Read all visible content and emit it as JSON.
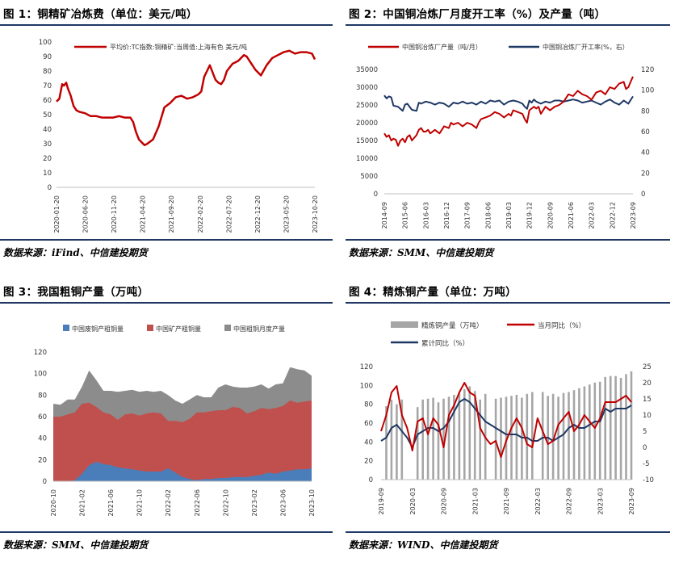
{
  "panels": [
    {
      "title": "图 1：铜精矿冶炼费（单位：美元/吨）",
      "source": "数据来源：iFind、中信建投期货"
    },
    {
      "title": "图 2：中国铜冶炼厂月度开工率（%）及产量（吨）",
      "source": "数据来源：SMM、中信建投期货"
    },
    {
      "title": "图 3：我国粗铜产量（万吨）",
      "source": "数据来源：SMM、中信建投期货"
    },
    {
      "title": "图 4：精炼铜产量（单位：万吨）",
      "source": "数据来源：WIND、中信建投期货"
    }
  ],
  "colors": {
    "red": "#c00000",
    "navy": "#1f3864",
    "blue": "#4a7ebb",
    "red3": "#c0504d",
    "gray": "#8c8c8c",
    "gray4": "#a6a6a6",
    "dark": "#1f3864",
    "rule": "#1f3864"
  },
  "chart_data": [
    {
      "type": "line",
      "legend": [
        "平均价:TC指数:铜精矿:当周值:上海有色 美元/吨"
      ],
      "ylim": [
        0,
        100
      ],
      "yticks": [
        "0",
        "10",
        "20",
        "30",
        "40",
        "50",
        "60",
        "70",
        "80",
        "90",
        "100"
      ],
      "xticks": [
        "2020-01-20",
        "2020-06-20",
        "2020-11-20",
        "2021-04-20",
        "2021-09-20",
        "2022-02-20",
        "2022-07-20",
        "2022-12-20",
        "2023-05-20",
        "2023-10-20"
      ],
      "xrange": [
        0,
        45.5
      ],
      "x": [
        0,
        0.5,
        1,
        1.3,
        1.7,
        2,
        2.5,
        3,
        3.5,
        4,
        5,
        6,
        7,
        8,
        9,
        10,
        11,
        12,
        13,
        13.5,
        14,
        14.5,
        15,
        15.5,
        16,
        17,
        18,
        19,
        20,
        21,
        22,
        23,
        24,
        25,
        25.5,
        26,
        26.5,
        27,
        28,
        28.5,
        29,
        29.5,
        30,
        31,
        32,
        33,
        33.5,
        34,
        35,
        36,
        37,
        38,
        39,
        40,
        41,
        42,
        43,
        44,
        45,
        45.5
      ],
      "y": [
        59,
        61,
        71,
        70,
        72,
        68,
        63,
        56,
        53,
        52,
        51,
        49,
        49,
        48,
        48,
        48,
        49,
        48,
        48,
        45,
        38,
        33,
        31,
        29,
        30,
        33,
        42,
        55,
        58,
        62,
        63,
        61,
        62,
        64,
        66,
        76,
        80,
        84,
        74,
        72,
        71,
        74,
        80,
        85,
        87,
        91,
        90,
        87,
        81,
        77,
        84,
        89,
        91,
        93,
        94,
        92,
        93,
        93,
        92,
        88
      ]
    },
    {
      "type": "line",
      "legend": [
        "中国铜冶炼厂产量（吨/月）",
        "中国铜冶炼厂开工率(%，右）"
      ],
      "ylim": [
        0,
        35000
      ],
      "yticks": [
        "0",
        "5000",
        "10000",
        "15000",
        "20000",
        "25000",
        "30000",
        "35000"
      ],
      "y2lim": [
        0,
        120
      ],
      "y2ticks": [
        "0",
        "20",
        "40",
        "60",
        "80",
        "100",
        "120"
      ],
      "xticks": [
        "2014-09",
        "2015-06",
        "2016-03",
        "2016-12",
        "2017-09",
        "2018-06",
        "2019-03",
        "2019-12",
        "2020-09",
        "2021-06",
        "2022-03",
        "2022-12",
        "2023-09"
      ],
      "xrange": [
        0,
        108
      ],
      "series": [
        {
          "name": "中国铜冶炼厂产量（吨/月）",
          "x": [
            0,
            1,
            2,
            3,
            4,
            5,
            6,
            7,
            8,
            9,
            10,
            11,
            12,
            14,
            15,
            16,
            17,
            18,
            19,
            20,
            22,
            24,
            26,
            28,
            29,
            30,
            32,
            34,
            36,
            38,
            40,
            41,
            42,
            44,
            46,
            48,
            50,
            52,
            54,
            55,
            56,
            58,
            60,
            61,
            62,
            63,
            64,
            65,
            66,
            67,
            68,
            70,
            72,
            74,
            76,
            78,
            80,
            82,
            84,
            86,
            88,
            90,
            92,
            94,
            96,
            98,
            100,
            102,
            104,
            105,
            106,
            107,
            108
          ],
          "y": [
            17000,
            16000,
            16500,
            15000,
            15500,
            15200,
            13500,
            15000,
            15500,
            14500,
            16000,
            16500,
            15000,
            16500,
            18000,
            18500,
            17500,
            17500,
            18000,
            17000,
            18000,
            17000,
            19000,
            18500,
            20000,
            19500,
            20000,
            19000,
            20000,
            19500,
            18500,
            20000,
            21000,
            21500,
            22000,
            23000,
            22500,
            21500,
            22500,
            22000,
            23500,
            23000,
            22500,
            21000,
            20000,
            23500,
            24000,
            24500,
            24000,
            24500,
            22500,
            24500,
            23500,
            24500,
            25000,
            26000,
            28000,
            27500,
            29000,
            28000,
            27500,
            26500,
            28500,
            29000,
            28000,
            30000,
            29500,
            31000,
            31500,
            29500,
            30000,
            31500,
            33000
          ]
        },
        {
          "name": "中国铜冶炼厂开工率(%，右）",
          "x": [
            0,
            1,
            2,
            3,
            4,
            6,
            8,
            9,
            10,
            12,
            14,
            15,
            16,
            18,
            20,
            22,
            24,
            26,
            28,
            30,
            32,
            34,
            36,
            38,
            40,
            42,
            44,
            46,
            48,
            50,
            52,
            54,
            56,
            58,
            60,
            61,
            62,
            63,
            64,
            65,
            66,
            68,
            70,
            72,
            74,
            76,
            78,
            80,
            82,
            84,
            86,
            88,
            90,
            92,
            94,
            96,
            98,
            100,
            102,
            104,
            106,
            108
          ],
          "y": [
            95,
            92,
            94,
            93,
            85,
            84,
            80,
            86,
            87,
            81,
            80,
            88,
            87,
            89,
            88,
            86,
            88,
            87,
            84,
            88,
            87,
            89,
            87,
            88,
            86,
            89,
            87,
            90,
            89,
            90,
            86,
            89,
            90,
            89,
            87,
            84,
            82,
            90,
            88,
            91,
            89,
            87,
            89,
            88,
            90,
            90,
            89,
            90,
            91,
            90,
            88,
            89,
            90,
            88,
            86,
            89,
            91,
            88,
            86,
            90,
            87,
            94
          ]
        }
      ]
    },
    {
      "type": "area",
      "legend": [
        "中国废铜产粗铜量",
        "中国矿产粗铜量",
        "中国粗铜月度产量"
      ],
      "ylim": [
        0,
        120
      ],
      "yticks": [
        "0",
        "20",
        "40",
        "60",
        "80",
        "100",
        "120"
      ],
      "xticks": [
        "2020-10",
        "2021-02",
        "2021-06",
        "2021-10",
        "2022-02",
        "2022-06",
        "2022-10",
        "2023-02",
        "2023-06",
        "2023-10"
      ],
      "xrange": [
        0,
        36
      ],
      "x": [
        0,
        1,
        2,
        3,
        4,
        5,
        6,
        7,
        8,
        9,
        10,
        11,
        12,
        13,
        14,
        15,
        16,
        17,
        18,
        19,
        20,
        21,
        22,
        23,
        24,
        25,
        26,
        27,
        28,
        29,
        30,
        31,
        32,
        33,
        34,
        35,
        36
      ],
      "series": [
        {
          "name": "中国废铜产粗铜量",
          "values": [
            0,
            0,
            0,
            1,
            7,
            15,
            18,
            16,
            15,
            13,
            12,
            11,
            10,
            9,
            9,
            9,
            12,
            8,
            4,
            2,
            1,
            2,
            2,
            3,
            3,
            4,
            4,
            4,
            5,
            6,
            8,
            7,
            9,
            10,
            11,
            11,
            12
          ]
        },
        {
          "name": "中国矿产粗铜量",
          "values": [
            60,
            60,
            62,
            64,
            72,
            73,
            69,
            64,
            62,
            57,
            62,
            63,
            61,
            63,
            64,
            63,
            56,
            56,
            55,
            58,
            64,
            64,
            65,
            66,
            66,
            69,
            68,
            63,
            65,
            68,
            67,
            68,
            70,
            75,
            73,
            74,
            75
          ]
        },
        {
          "name": "中国粗铜月度产量",
          "values": [
            72,
            71,
            76,
            76,
            88,
            103,
            94,
            84,
            84,
            83,
            84,
            85,
            83,
            84,
            83,
            84,
            80,
            75,
            72,
            76,
            80,
            78,
            78,
            87,
            90,
            88,
            87,
            87,
            88,
            90,
            86,
            90,
            91,
            106,
            104,
            103,
            98
          ]
        }
      ]
    },
    {
      "type": "bar",
      "legend": [
        "精炼铜产量（万吨）",
        "当月同比（%）",
        "累计同比（%）"
      ],
      "ylim": [
        0,
        120
      ],
      "yticks": [
        "0",
        "20",
        "40",
        "60",
        "80",
        "100",
        "120"
      ],
      "y2lim": [
        -10,
        25
      ],
      "y2ticks": [
        "-10",
        "-5",
        "0",
        "5",
        "10",
        "15",
        "20",
        "25"
      ],
      "xticks": [
        "2019-09",
        "2020-03",
        "2020-09",
        "2021-03",
        "2021-09",
        "2022-03",
        "2022-09",
        "2023-03",
        "2023-09"
      ],
      "xrange": [
        0,
        48
      ],
      "bars": {
        "name": "精炼铜产量（万吨）",
        "x": [
          1,
          2,
          3,
          4,
          7,
          8,
          9,
          10,
          11,
          12,
          13,
          14,
          15,
          16,
          17,
          18,
          19,
          20,
          22,
          23,
          24,
          25,
          26,
          27,
          28,
          29,
          31,
          32,
          33,
          34,
          35,
          36,
          37,
          38,
          39,
          40,
          41,
          42,
          43,
          44,
          45,
          46,
          47,
          48
        ],
        "values": [
          78,
          85,
          80,
          85,
          77,
          85,
          86,
          87,
          82,
          86,
          88,
          90,
          92,
          96,
          99,
          94,
          85,
          91,
          86,
          87,
          88,
          89,
          90,
          87,
          91,
          93,
          93,
          89,
          91,
          88,
          92,
          93,
          95,
          97,
          99,
          101,
          103,
          104,
          109,
          110,
          110,
          108,
          112,
          115
        ]
      },
      "series": [
        {
          "name": "当月同比（%）",
          "x": [
            0,
            1,
            2,
            3,
            4,
            5,
            6,
            7,
            8,
            9,
            10,
            11,
            12,
            13,
            14,
            15,
            16,
            17,
            18,
            19,
            20,
            21,
            22,
            23,
            24,
            25,
            26,
            27,
            28,
            29,
            30,
            31,
            32,
            33,
            34,
            35,
            36,
            37,
            38,
            39,
            40,
            41,
            42,
            43,
            44,
            45,
            46,
            47,
            48
          ],
          "y": [
            5,
            10,
            17,
            19,
            10,
            6,
            -1,
            8,
            9,
            4,
            9,
            7,
            0,
            10,
            13,
            17,
            20,
            17,
            16,
            6,
            3,
            1,
            2,
            -3,
            2,
            6,
            9,
            6,
            1,
            0,
            9,
            5,
            1,
            2,
            7,
            9,
            11,
            5,
            7,
            10,
            8,
            6,
            9,
            14,
            14,
            14,
            15,
            16,
            14
          ]
        },
        {
          "name": "累计同比（%）",
          "x": [
            0,
            1,
            2,
            3,
            4,
            5,
            6,
            7,
            8,
            9,
            10,
            11,
            12,
            13,
            14,
            15,
            16,
            17,
            18,
            19,
            20,
            21,
            22,
            23,
            24,
            25,
            26,
            27,
            28,
            29,
            30,
            31,
            32,
            33,
            34,
            35,
            36,
            37,
            38,
            39,
            40,
            41,
            42,
            43,
            44,
            45,
            46,
            47,
            48
          ],
          "y": [
            2,
            3,
            6,
            7,
            5,
            3,
            0,
            4,
            5,
            6,
            6,
            5,
            6,
            8,
            11,
            14,
            15,
            14,
            12,
            10,
            8,
            7,
            6,
            5,
            4,
            4,
            4,
            3,
            3,
            2,
            2,
            3,
            3,
            2,
            3,
            4,
            6,
            7,
            6,
            6,
            7,
            8,
            8,
            12,
            11,
            12,
            12,
            12,
            13
          ]
        }
      ]
    }
  ]
}
